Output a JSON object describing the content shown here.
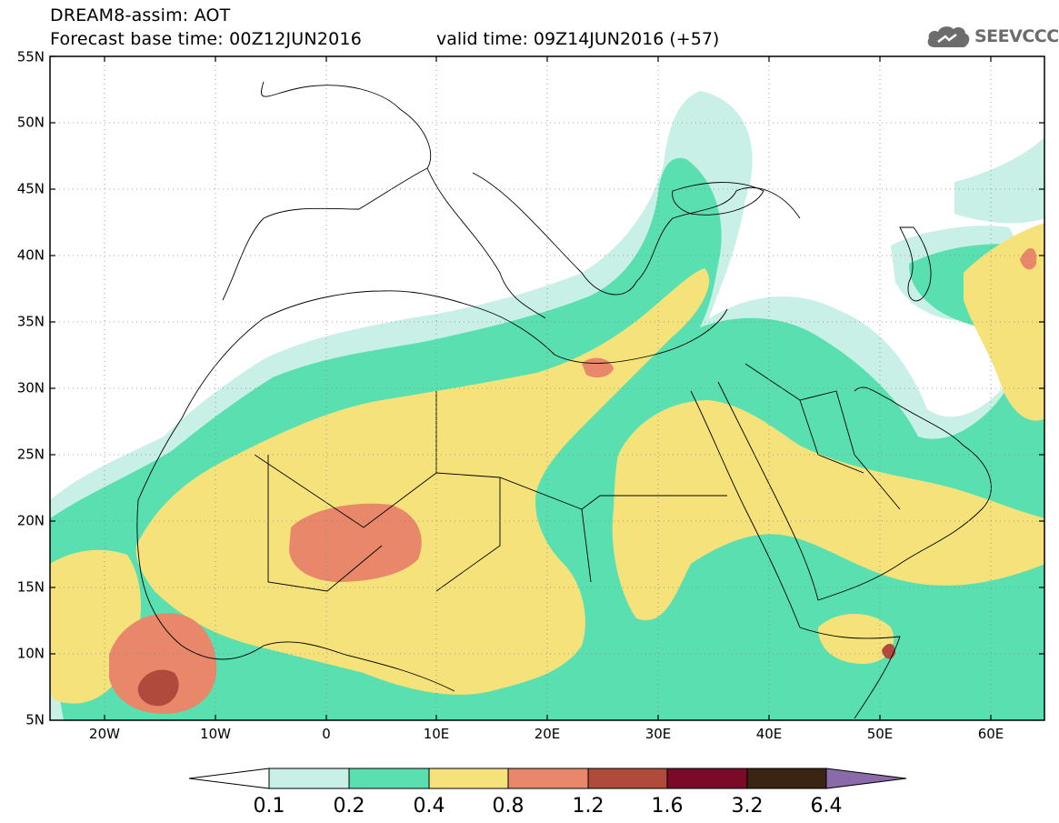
{
  "title": {
    "line1": "DREAM8-assim: AOT",
    "forecast_base": "Forecast base time: 00Z12JUN2016",
    "valid_time": "valid time: 09Z14JUN2016 (+57)"
  },
  "logo": {
    "text": "SEEVCCC",
    "icon": "cloud-icon"
  },
  "map": {
    "lat_labels": [
      "55N",
      "50N",
      "45N",
      "40N",
      "35N",
      "30N",
      "25N",
      "20N",
      "15N",
      "10N",
      "5N"
    ],
    "lon_labels": [
      "20W",
      "10W",
      "0",
      "10E",
      "20E",
      "30E",
      "40E",
      "50E",
      "60E"
    ]
  },
  "colorbar": {
    "labels": [
      "0.1",
      "0.2",
      "0.4",
      "0.8",
      "1.2",
      "1.6",
      "3.2",
      "6.4"
    ],
    "colors": [
      "#ffffff",
      "#c8f0e6",
      "#5ae0b0",
      "#f5e27a",
      "#e8876a",
      "#b04a3c",
      "#7a0a28",
      "#3a2414",
      "#8a6aa8"
    ]
  },
  "fill_colors": {
    "c01": "#c8f0e6",
    "c02": "#5ae0b0",
    "c04": "#f5e27a",
    "c08": "#e8876a",
    "c12": "#b04a3c"
  }
}
